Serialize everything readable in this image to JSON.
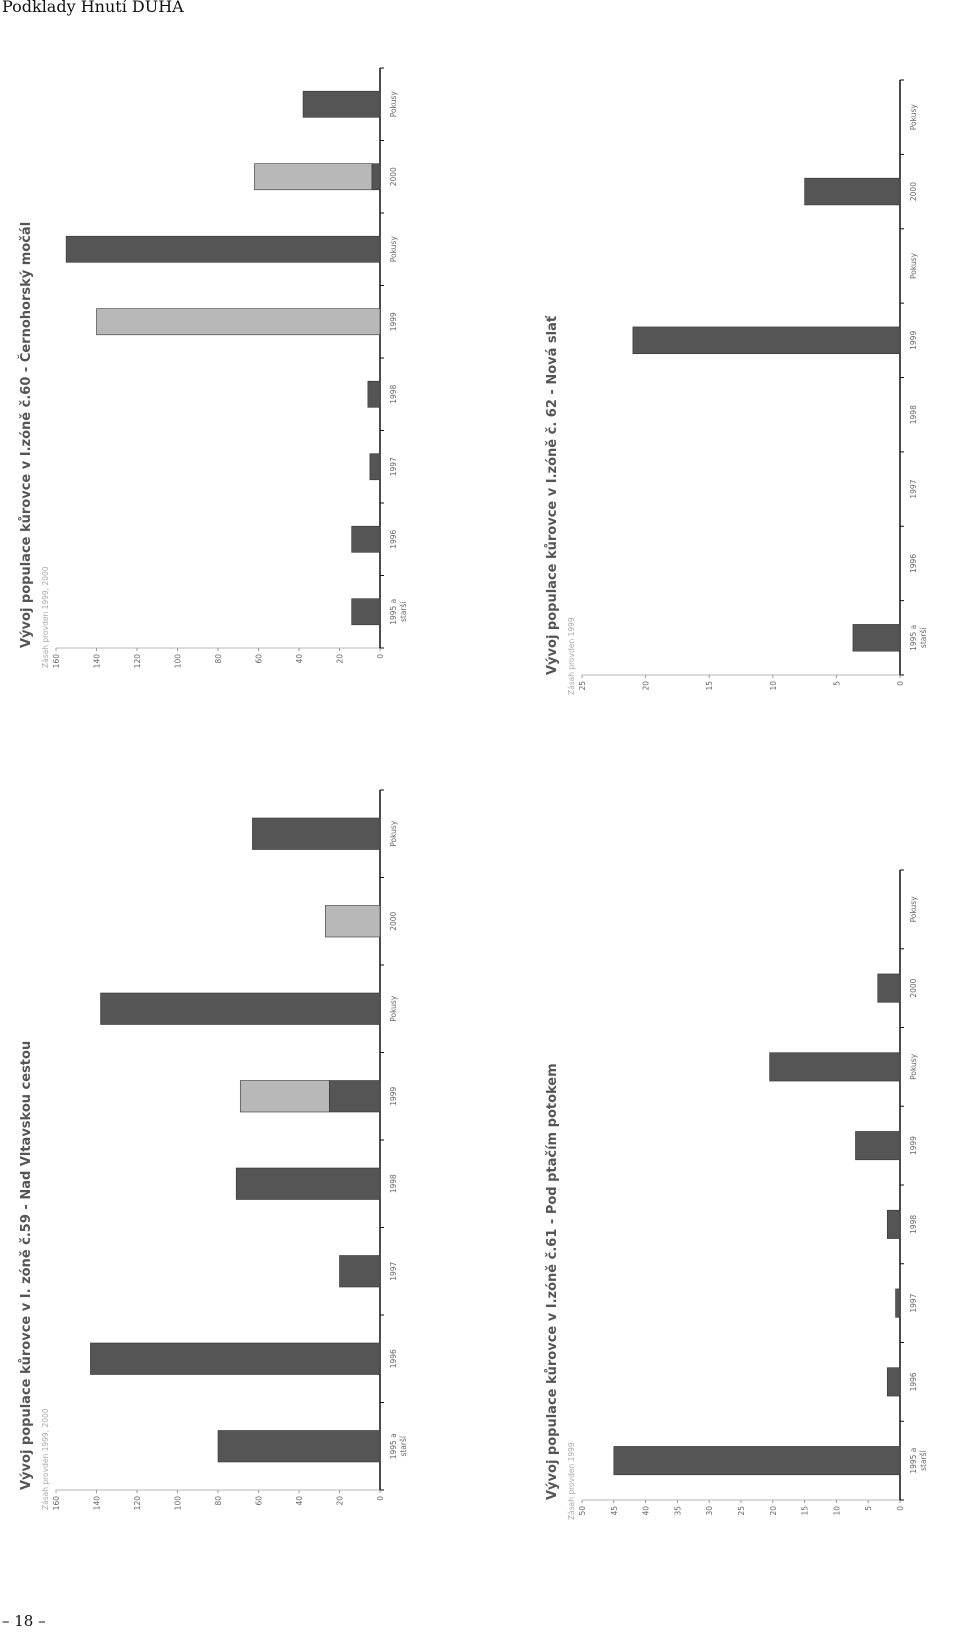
{
  "page": {
    "header": "Podklady Hnutí DUHA",
    "page_number": "– 18 –"
  },
  "chart_data": [
    {
      "type": "bar",
      "title": "Vývoj populace kůrovce v I. zóně č.59 - Nad Vltavskou cestou",
      "note": "Zásah provden 1999, 2000",
      "categories": [
        "1995 a starší",
        "1996",
        "1997",
        "1998",
        "1999",
        "Pokusy",
        "2000",
        "Pokusy"
      ],
      "series": [
        {
          "color": "#555555",
          "values": [
            80,
            143,
            20,
            71,
            25,
            138,
            0,
            63
          ]
        },
        {
          "color": "#b8b8b8",
          "values": [
            0,
            0,
            0,
            0,
            44,
            0,
            27,
            0
          ]
        }
      ],
      "ylim": [
        0,
        160
      ],
      "yticks": [
        0,
        20,
        40,
        60,
        80,
        100,
        120,
        140,
        160
      ]
    },
    {
      "type": "bar",
      "title": "Vývoj populace kůrovce v I.zóně č.60 - Černohorský močál",
      "note": "Zásah provden 1999, 2000",
      "categories": [
        "1995 a starší",
        "1996",
        "1997",
        "1998",
        "1999",
        "Pokusy",
        "2000",
        "Pokusy"
      ],
      "series": [
        {
          "color": "#555555",
          "values": [
            14,
            14,
            5,
            6,
            0,
            155,
            4,
            38
          ]
        },
        {
          "color": "#b8b8b8",
          "values": [
            0,
            0,
            0,
            0,
            140,
            0,
            58,
            0
          ]
        }
      ],
      "ylim": [
        0,
        160
      ],
      "yticks": [
        0,
        20,
        40,
        60,
        80,
        100,
        120,
        140,
        160
      ]
    },
    {
      "type": "bar",
      "title": "Vývoj populace kůrovce v I.zóně č.61 - Pod ptačím potokem",
      "note": "Zásah provden 1999",
      "categories": [
        "1995 a starší",
        "1996",
        "1997",
        "1998",
        "1999",
        "Pokusy",
        "2000",
        "Pokusy"
      ],
      "series": [
        {
          "color": "#555555",
          "values": [
            45,
            2,
            0.7,
            2,
            7,
            20.5,
            3.5,
            0
          ]
        }
      ],
      "ylim": [
        0,
        50
      ],
      "yticks": [
        0,
        5,
        10,
        15,
        20,
        25,
        30,
        35,
        40,
        45,
        50
      ]
    },
    {
      "type": "bar",
      "title": "Vývoj populace kůrovce v I.zóně č. 62 - Nová slať",
      "note": "Zásah provden 1999",
      "categories": [
        "1995 a starší",
        "1996",
        "1997",
        "1998",
        "1999",
        "Pokusy",
        "2000",
        "Pokusy"
      ],
      "series": [
        {
          "color": "#555555",
          "values": [
            3.7,
            0,
            0,
            0,
            21,
            0,
            7.5,
            0
          ]
        }
      ],
      "ylim": [
        0,
        25
      ],
      "yticks": [
        0,
        5,
        10,
        15,
        20,
        25
      ]
    }
  ]
}
